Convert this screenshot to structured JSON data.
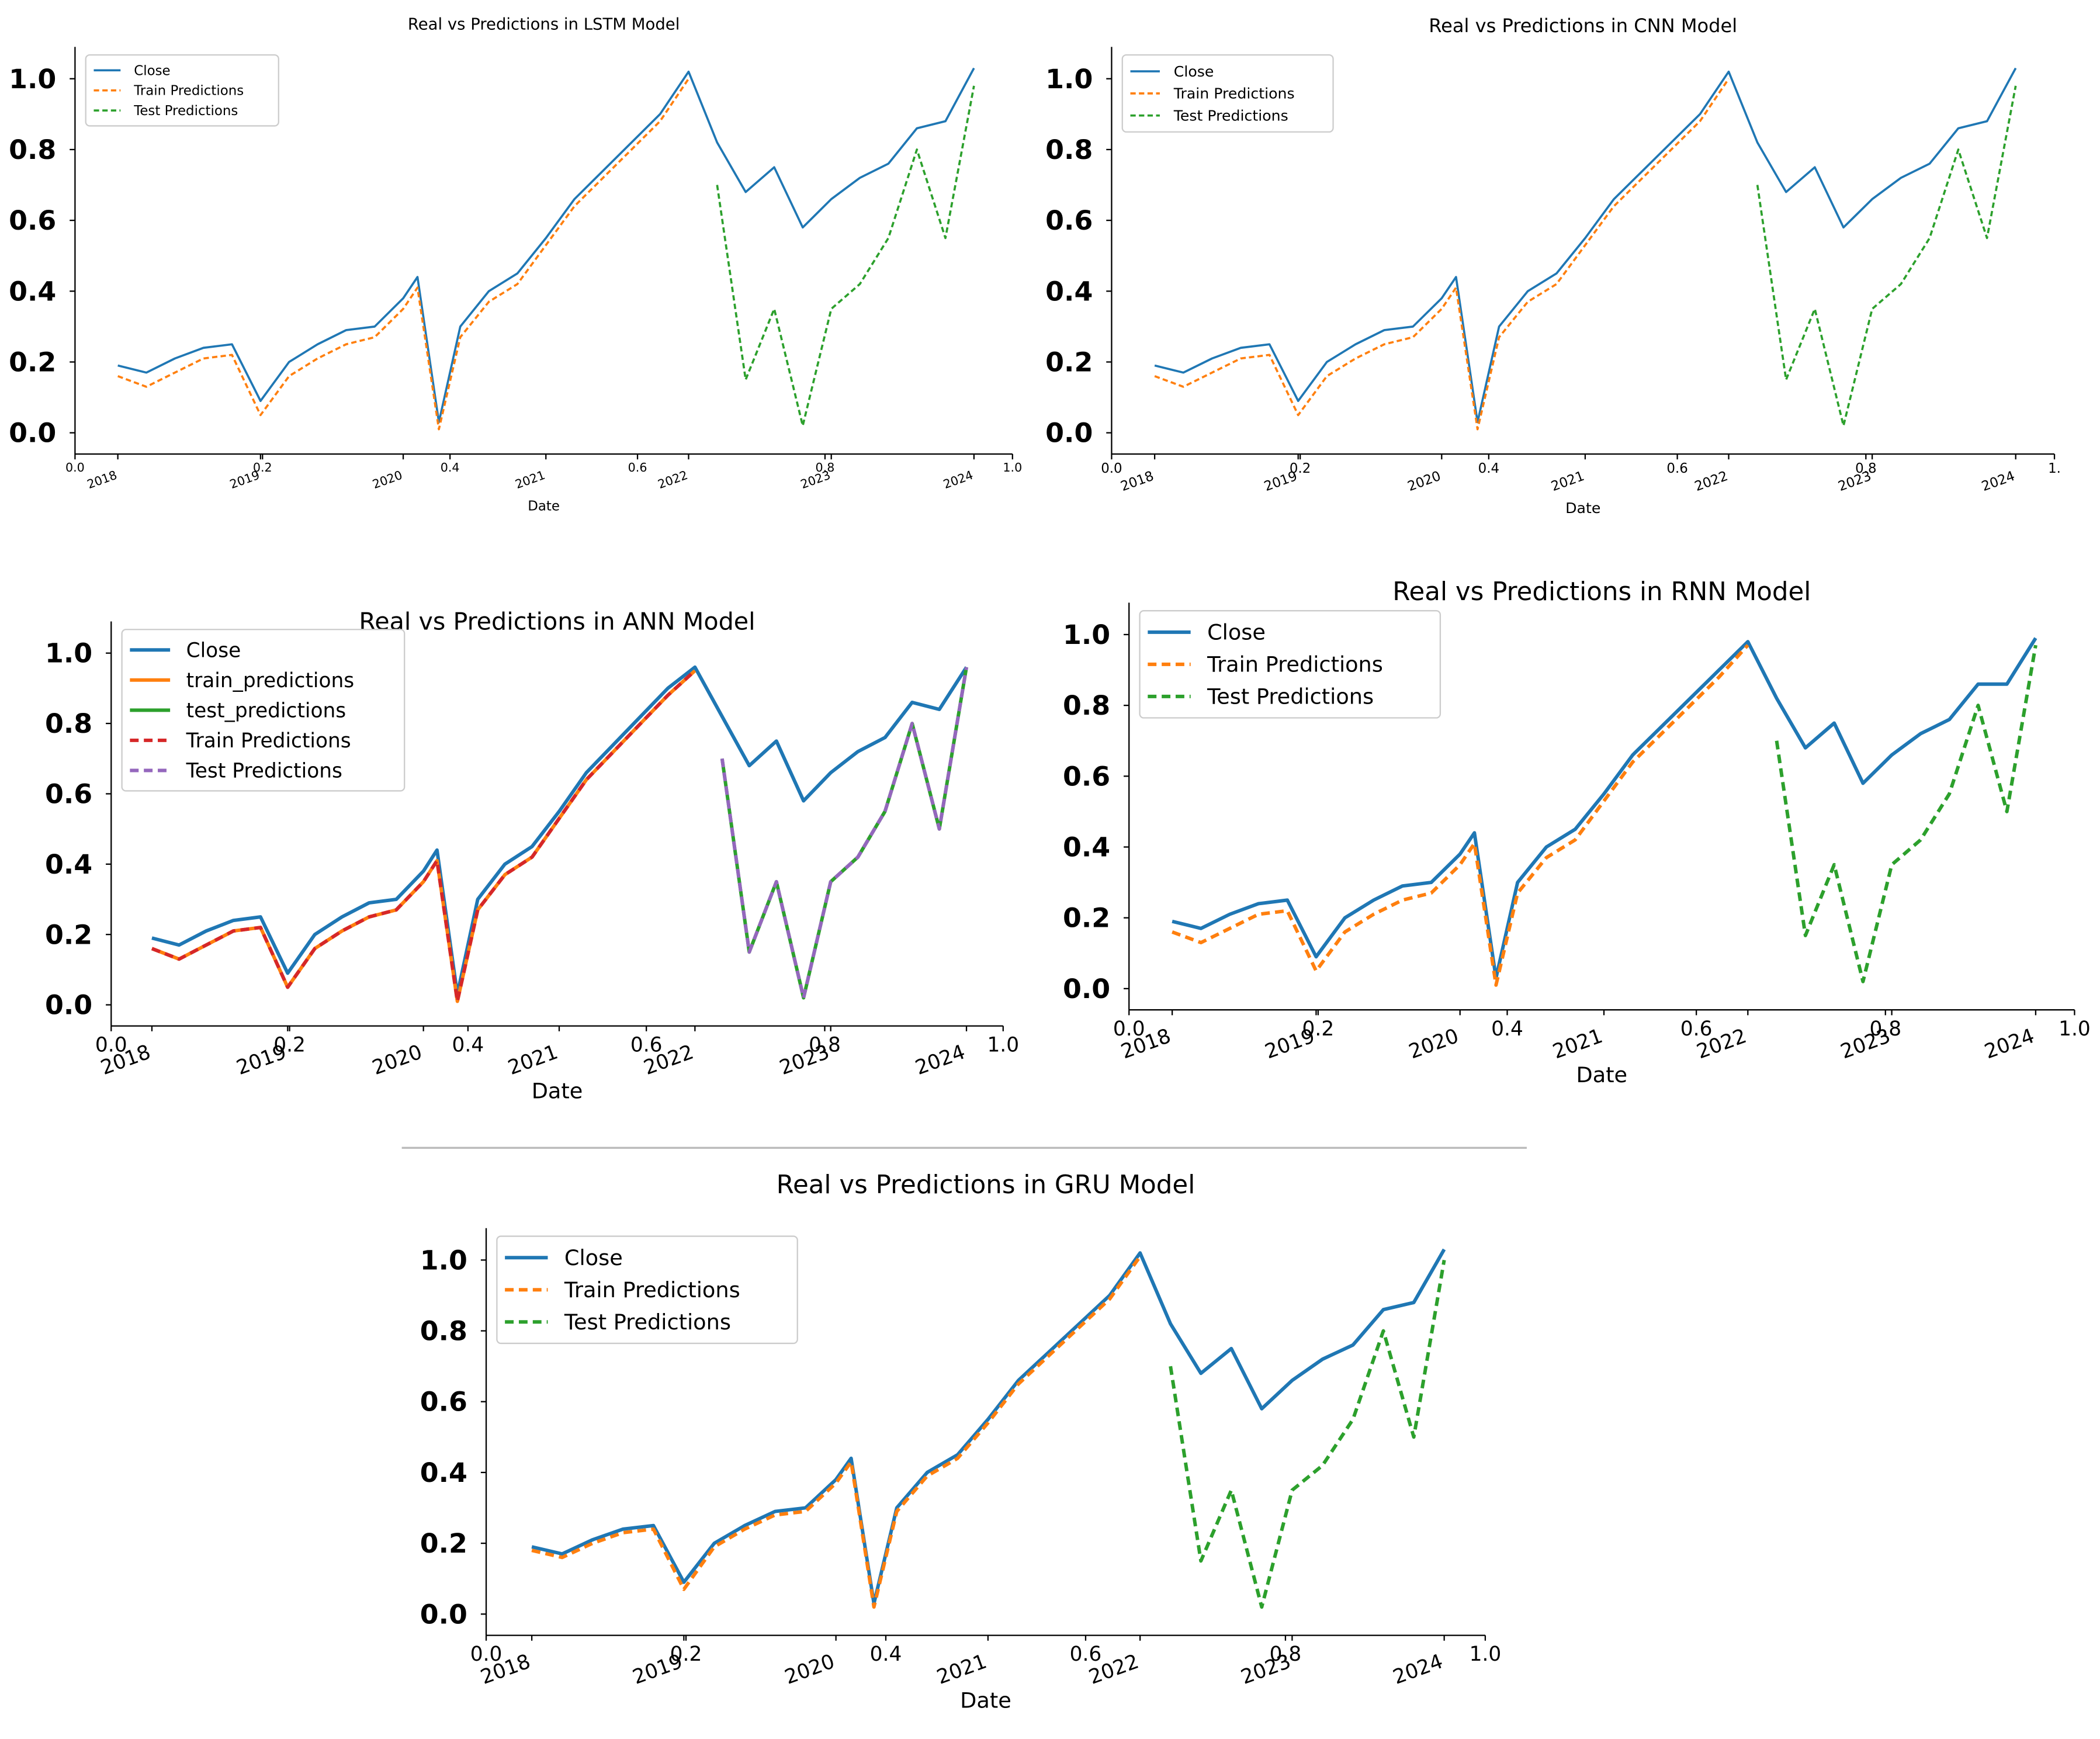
{
  "chart_data": [
    {
      "type": "line",
      "title": "Real vs Predictions in LSTM Model",
      "xlabel": "Date",
      "x": [
        2018.0,
        2018.2,
        2018.4,
        2018.6,
        2018.8,
        2019.0,
        2019.2,
        2019.4,
        2019.6,
        2019.8,
        2020.0,
        2020.1,
        2020.25,
        2020.4,
        2020.6,
        2020.8,
        2021.0,
        2021.2,
        2021.4,
        2021.6,
        2021.8,
        2022.0,
        2022.2,
        2022.4,
        2022.6,
        2022.8,
        2023.0,
        2023.2,
        2023.4,
        2023.6,
        2023.8,
        2024.0
      ],
      "series": [
        {
          "name": "Close",
          "color": "#1f77b4",
          "style": "solid",
          "values": [
            0.19,
            0.17,
            0.21,
            0.24,
            0.25,
            0.09,
            0.2,
            0.25,
            0.29,
            0.3,
            0.38,
            0.44,
            0.03,
            0.3,
            0.4,
            0.45,
            0.55,
            0.66,
            0.74,
            0.82,
            0.9,
            1.02,
            0.82,
            0.68,
            0.75,
            0.58,
            0.66,
            0.72,
            0.76,
            0.86,
            0.88,
            1.03
          ]
        },
        {
          "name": "Train Predictions",
          "color": "#ff7f0e",
          "style": "dashed",
          "values": [
            0.16,
            0.13,
            0.17,
            0.21,
            0.22,
            0.05,
            0.16,
            0.21,
            0.25,
            0.27,
            0.35,
            0.41,
            0.01,
            0.27,
            0.37,
            0.42,
            0.53,
            0.64,
            0.72,
            0.8,
            0.88,
            1.0,
            null,
            null,
            null,
            null,
            null,
            null,
            null,
            null,
            null,
            null
          ]
        },
        {
          "name": "Test Predictions",
          "color": "#2ca02c",
          "style": "dashed",
          "values": [
            null,
            null,
            null,
            null,
            null,
            null,
            null,
            null,
            null,
            null,
            null,
            null,
            null,
            null,
            null,
            null,
            null,
            null,
            null,
            null,
            null,
            null,
            0.7,
            0.15,
            0.35,
            0.02,
            0.35,
            0.42,
            0.55,
            0.8,
            0.55,
            0.98
          ]
        }
      ],
      "xlim": [
        2017.7,
        2024.27
      ],
      "xticks": [
        2018,
        2019,
        2020,
        2021,
        2022,
        2023,
        2024
      ],
      "x2lim": [
        0,
        1
      ],
      "x2ticks": [
        {
          "value": 0,
          "label": "0.0"
        },
        0.2,
        0.4,
        0.6,
        0.8,
        {
          "value": 1,
          "label": "1.0"
        }
      ],
      "ylim": [
        -0.06,
        1.09
      ],
      "yticks": [
        {
          "value": 0,
          "label": "0.0"
        },
        0.2,
        0.4,
        0.6,
        0.8,
        {
          "value": 1,
          "label": "1.0"
        }
      ],
      "legend": "upper left"
    },
    {
      "type": "line",
      "title": "Real vs Predictions in CNN Model",
      "xlabel": "Date",
      "x": [
        2018.0,
        2018.2,
        2018.4,
        2018.6,
        2018.8,
        2019.0,
        2019.2,
        2019.4,
        2019.6,
        2019.8,
        2020.0,
        2020.1,
        2020.25,
        2020.4,
        2020.6,
        2020.8,
        2021.0,
        2021.2,
        2021.4,
        2021.6,
        2021.8,
        2022.0,
        2022.2,
        2022.4,
        2022.6,
        2022.8,
        2023.0,
        2023.2,
        2023.4,
        2023.6,
        2023.8,
        2024.0
      ],
      "series": [
        {
          "name": "Close",
          "color": "#1f77b4",
          "style": "solid",
          "values": [
            0.19,
            0.17,
            0.21,
            0.24,
            0.25,
            0.09,
            0.2,
            0.25,
            0.29,
            0.3,
            0.38,
            0.44,
            0.03,
            0.3,
            0.4,
            0.45,
            0.55,
            0.66,
            0.74,
            0.82,
            0.9,
            1.02,
            0.82,
            0.68,
            0.75,
            0.58,
            0.66,
            0.72,
            0.76,
            0.86,
            0.88,
            1.03
          ]
        },
        {
          "name": "Train Predictions",
          "color": "#ff7f0e",
          "style": "dashed",
          "values": [
            0.16,
            0.13,
            0.17,
            0.21,
            0.22,
            0.05,
            0.16,
            0.21,
            0.25,
            0.27,
            0.35,
            0.41,
            0.01,
            0.27,
            0.37,
            0.42,
            0.53,
            0.64,
            0.72,
            0.8,
            0.88,
            1.0,
            null,
            null,
            null,
            null,
            null,
            null,
            null,
            null,
            null,
            null
          ]
        },
        {
          "name": "Test Predictions",
          "color": "#2ca02c",
          "style": "dashed",
          "values": [
            null,
            null,
            null,
            null,
            null,
            null,
            null,
            null,
            null,
            null,
            null,
            null,
            null,
            null,
            null,
            null,
            null,
            null,
            null,
            null,
            null,
            null,
            0.7,
            0.15,
            0.35,
            0.02,
            0.35,
            0.42,
            0.55,
            0.8,
            0.55,
            0.98
          ]
        }
      ],
      "xlim": [
        2017.7,
        2024.27
      ],
      "xticks": [
        2018,
        2019,
        2020,
        2021,
        2022,
        2023,
        2024
      ],
      "x2lim": [
        0,
        1
      ],
      "x2ticks": [
        {
          "value": 0,
          "label": "0.0"
        },
        0.2,
        0.4,
        0.6,
        0.8,
        {
          "value": 1,
          "label": "1."
        }
      ],
      "ylim": [
        -0.06,
        1.09
      ],
      "yticks": [
        {
          "value": 0,
          "label": "0.0"
        },
        0.2,
        0.4,
        0.6,
        0.8,
        {
          "value": 1,
          "label": "1.0"
        }
      ],
      "legend": "upper left"
    },
    {
      "type": "line",
      "title": "Real vs Predictions in ANN Model",
      "xlabel": "Date",
      "x": [
        2018.0,
        2018.2,
        2018.4,
        2018.6,
        2018.8,
        2019.0,
        2019.2,
        2019.4,
        2019.6,
        2019.8,
        2020.0,
        2020.1,
        2020.25,
        2020.4,
        2020.6,
        2020.8,
        2021.0,
        2021.2,
        2021.4,
        2021.6,
        2021.8,
        2022.0,
        2022.2,
        2022.4,
        2022.6,
        2022.8,
        2023.0,
        2023.2,
        2023.4,
        2023.6,
        2023.8,
        2024.0
      ],
      "series": [
        {
          "name": "Close",
          "color": "#1f77b4",
          "style": "solid",
          "values": [
            0.19,
            0.17,
            0.21,
            0.24,
            0.25,
            0.09,
            0.2,
            0.25,
            0.29,
            0.3,
            0.38,
            0.44,
            0.03,
            0.3,
            0.4,
            0.45,
            0.55,
            0.66,
            0.74,
            0.82,
            0.9,
            0.96,
            0.82,
            0.68,
            0.75,
            0.58,
            0.66,
            0.72,
            0.76,
            0.86,
            0.84,
            0.96
          ]
        },
        {
          "name": "train_predictions",
          "color": "#ff7f0e",
          "style": "solid",
          "values": [
            0.16,
            0.13,
            0.17,
            0.21,
            0.22,
            0.05,
            0.16,
            0.21,
            0.25,
            0.27,
            0.35,
            0.41,
            0.01,
            0.27,
            0.37,
            0.42,
            0.53,
            0.64,
            0.72,
            0.8,
            0.88,
            0.95,
            null,
            null,
            null,
            null,
            null,
            null,
            null,
            null,
            null,
            null
          ]
        },
        {
          "name": "test_predictions",
          "color": "#2ca02c",
          "style": "solid",
          "values": [
            null,
            null,
            null,
            null,
            null,
            null,
            null,
            null,
            null,
            null,
            null,
            null,
            null,
            null,
            null,
            null,
            null,
            null,
            null,
            null,
            null,
            null,
            0.7,
            0.15,
            0.35,
            0.02,
            0.35,
            0.42,
            0.55,
            0.8,
            0.5,
            0.96
          ]
        },
        {
          "name": "Train Predictions",
          "color": "#d62728",
          "style": "dashed",
          "values": [
            0.16,
            0.13,
            0.17,
            0.21,
            0.22,
            0.05,
            0.16,
            0.21,
            0.25,
            0.27,
            0.35,
            0.41,
            0.01,
            0.27,
            0.37,
            0.42,
            0.53,
            0.64,
            0.72,
            0.8,
            0.88,
            0.95,
            null,
            null,
            null,
            null,
            null,
            null,
            null,
            null,
            null,
            null
          ]
        },
        {
          "name": "Test Predictions",
          "color": "#9467bd",
          "style": "dashed",
          "values": [
            null,
            null,
            null,
            null,
            null,
            null,
            null,
            null,
            null,
            null,
            null,
            null,
            null,
            null,
            null,
            null,
            null,
            null,
            null,
            null,
            null,
            null,
            0.7,
            0.15,
            0.35,
            0.02,
            0.35,
            0.42,
            0.55,
            0.8,
            0.5,
            0.96
          ]
        }
      ],
      "xlim": [
        2017.7,
        2024.27
      ],
      "xticks": [
        2018,
        2019,
        2020,
        2021,
        2022,
        2023,
        2024
      ],
      "x2lim": [
        0,
        1
      ],
      "x2ticks": [
        {
          "value": 0,
          "label": "0.0"
        },
        0.2,
        0.4,
        0.6,
        0.8,
        {
          "value": 1,
          "label": "1.0"
        }
      ],
      "ylim": [
        -0.06,
        1.09
      ],
      "yticks": [
        {
          "value": 0,
          "label": "0.0"
        },
        0.2,
        0.4,
        0.6,
        0.8,
        {
          "value": 1,
          "label": "1.0"
        }
      ],
      "legend": "upper left"
    },
    {
      "type": "line",
      "title": "Real vs Predictions in RNN Model",
      "xlabel": "Date",
      "x": [
        2018.0,
        2018.2,
        2018.4,
        2018.6,
        2018.8,
        2019.0,
        2019.2,
        2019.4,
        2019.6,
        2019.8,
        2020.0,
        2020.1,
        2020.25,
        2020.4,
        2020.6,
        2020.8,
        2021.0,
        2021.2,
        2021.4,
        2021.6,
        2021.8,
        2022.0,
        2022.2,
        2022.4,
        2022.6,
        2022.8,
        2023.0,
        2023.2,
        2023.4,
        2023.6,
        2023.8,
        2024.0
      ],
      "series": [
        {
          "name": "Close",
          "color": "#1f77b4",
          "style": "solid",
          "values": [
            0.19,
            0.17,
            0.21,
            0.24,
            0.25,
            0.09,
            0.2,
            0.25,
            0.29,
            0.3,
            0.38,
            0.44,
            0.03,
            0.3,
            0.4,
            0.45,
            0.55,
            0.66,
            0.74,
            0.82,
            0.9,
            0.98,
            0.82,
            0.68,
            0.75,
            0.58,
            0.66,
            0.72,
            0.76,
            0.86,
            0.86,
            0.99
          ]
        },
        {
          "name": "Train Predictions",
          "color": "#ff7f0e",
          "style": "dashed",
          "values": [
            0.16,
            0.13,
            0.17,
            0.21,
            0.22,
            0.05,
            0.16,
            0.21,
            0.25,
            0.27,
            0.35,
            0.41,
            0.01,
            0.27,
            0.37,
            0.42,
            0.53,
            0.64,
            0.72,
            0.8,
            0.88,
            0.97,
            null,
            null,
            null,
            null,
            null,
            null,
            null,
            null,
            null,
            null
          ]
        },
        {
          "name": "Test Predictions",
          "color": "#2ca02c",
          "style": "dashed",
          "values": [
            null,
            null,
            null,
            null,
            null,
            null,
            null,
            null,
            null,
            null,
            null,
            null,
            null,
            null,
            null,
            null,
            null,
            null,
            null,
            null,
            null,
            null,
            0.7,
            0.15,
            0.35,
            0.02,
            0.35,
            0.42,
            0.55,
            0.8,
            0.5,
            0.97
          ]
        }
      ],
      "xlim": [
        2017.7,
        2024.27
      ],
      "xticks": [
        2018,
        2019,
        2020,
        2021,
        2022,
        2023,
        2024
      ],
      "x2lim": [
        0,
        1
      ],
      "x2ticks": [
        {
          "value": 0,
          "label": "0.0"
        },
        0.2,
        0.4,
        0.6,
        0.8,
        {
          "value": 1,
          "label": "1.0"
        }
      ],
      "ylim": [
        -0.06,
        1.09
      ],
      "yticks": [
        {
          "value": 0,
          "label": "0.0"
        },
        0.2,
        0.4,
        0.6,
        0.8,
        {
          "value": 1,
          "label": "1.0"
        }
      ],
      "legend": "upper left"
    },
    {
      "type": "line",
      "title": "Real vs Predictions in GRU Model",
      "xlabel": "Date",
      "x": [
        2018.0,
        2018.2,
        2018.4,
        2018.6,
        2018.8,
        2019.0,
        2019.2,
        2019.4,
        2019.6,
        2019.8,
        2020.0,
        2020.1,
        2020.25,
        2020.4,
        2020.6,
        2020.8,
        2021.0,
        2021.2,
        2021.4,
        2021.6,
        2021.8,
        2022.0,
        2022.2,
        2022.4,
        2022.6,
        2022.8,
        2023.0,
        2023.2,
        2023.4,
        2023.6,
        2023.8,
        2024.0
      ],
      "series": [
        {
          "name": "Close",
          "color": "#1f77b4",
          "style": "solid",
          "values": [
            0.19,
            0.17,
            0.21,
            0.24,
            0.25,
            0.09,
            0.2,
            0.25,
            0.29,
            0.3,
            0.38,
            0.44,
            0.03,
            0.3,
            0.4,
            0.45,
            0.55,
            0.66,
            0.74,
            0.82,
            0.9,
            1.02,
            0.82,
            0.68,
            0.75,
            0.58,
            0.66,
            0.72,
            0.76,
            0.86,
            0.88,
            1.03
          ]
        },
        {
          "name": "Train Predictions",
          "color": "#ff7f0e",
          "style": "dashed",
          "values": [
            0.18,
            0.16,
            0.2,
            0.23,
            0.24,
            0.07,
            0.19,
            0.24,
            0.28,
            0.29,
            0.37,
            0.43,
            0.02,
            0.29,
            0.39,
            0.44,
            0.54,
            0.65,
            0.73,
            0.81,
            0.89,
            1.01,
            null,
            null,
            null,
            null,
            null,
            null,
            null,
            null,
            null,
            null
          ]
        },
        {
          "name": "Test Predictions",
          "color": "#2ca02c",
          "style": "dashed",
          "values": [
            null,
            null,
            null,
            null,
            null,
            null,
            null,
            null,
            null,
            null,
            null,
            null,
            null,
            null,
            null,
            null,
            null,
            null,
            null,
            null,
            null,
            null,
            0.7,
            0.15,
            0.35,
            0.02,
            0.35,
            0.42,
            0.55,
            0.8,
            0.5,
            1.0
          ]
        }
      ],
      "xlim": [
        2017.7,
        2024.27
      ],
      "xticks": [
        2018,
        2019,
        2020,
        2021,
        2022,
        2023,
        2024
      ],
      "x2lim": [
        0,
        1
      ],
      "x2ticks": [
        {
          "value": 0,
          "label": "0.0"
        },
        0.2,
        0.4,
        0.6,
        0.8,
        {
          "value": 1,
          "label": "1.0"
        }
      ],
      "ylim": [
        -0.06,
        1.09
      ],
      "yticks": [
        {
          "value": 0,
          "label": "0.0"
        },
        0.2,
        0.4,
        0.6,
        0.8,
        {
          "value": 1,
          "label": "1.0"
        }
      ],
      "legend": "upper left"
    }
  ]
}
